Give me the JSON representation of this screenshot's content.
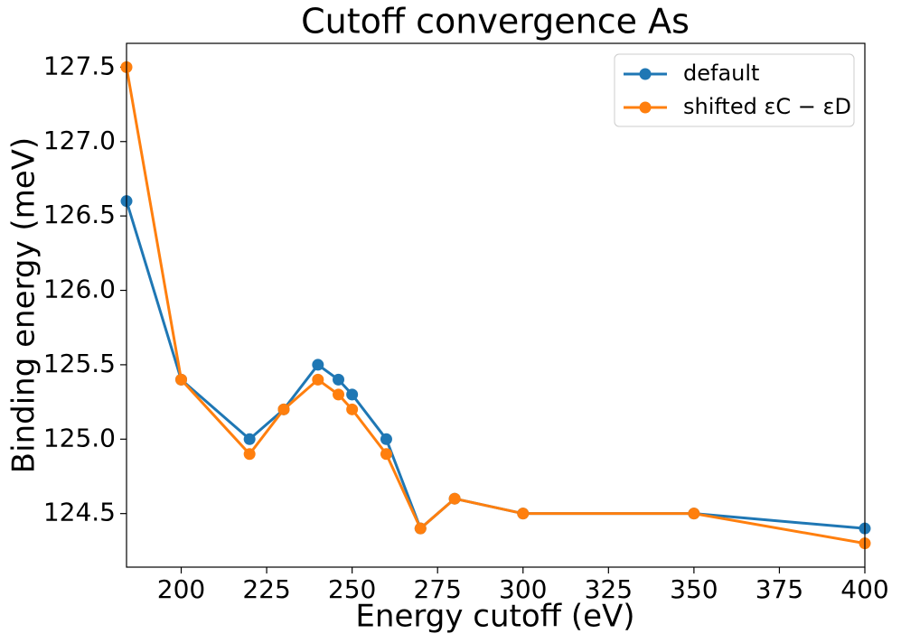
{
  "chart_data": {
    "type": "line",
    "title": "Cutoff convergence As",
    "x_label": "Energy cutoff (eV)",
    "y_label": "Binding energy (meV)",
    "x": [
      184,
      200,
      220,
      230,
      240,
      246,
      250,
      260,
      270,
      280,
      300,
      350,
      400
    ],
    "series": [
      {
        "name": "default",
        "color": "#1f77b4",
        "values": [
          126.6,
          125.4,
          125.0,
          125.2,
          125.5,
          125.4,
          125.3,
          125.0,
          124.4,
          124.6,
          124.5,
          124.5,
          124.4
        ]
      },
      {
        "name": "shifted εC − εD",
        "color": "#ff7f0e",
        "values": [
          127.5,
          125.4,
          124.9,
          125.2,
          125.4,
          125.3,
          125.2,
          124.9,
          124.4,
          124.6,
          124.5,
          124.5,
          124.3
        ]
      }
    ],
    "xlim": [
      184,
      400
    ],
    "ylim": [
      124.14,
      127.66
    ],
    "xticks": [
      200,
      225,
      250,
      275,
      300,
      325,
      350,
      375,
      400
    ],
    "yticks": [
      124.5,
      {
        "value": 125,
        "label": "125.0"
      },
      125.5,
      {
        "value": 126,
        "label": "126.0"
      },
      126.5,
      {
        "value": 127,
        "label": "127.0"
      },
      127.5
    ],
    "legend": "upper right"
  }
}
